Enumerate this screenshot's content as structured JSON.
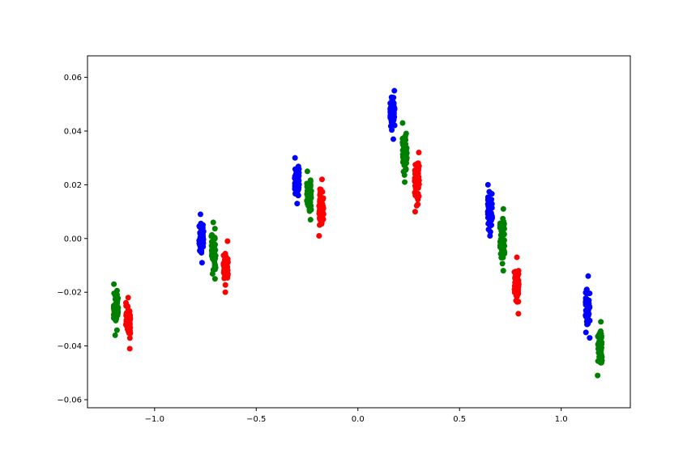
{
  "chart_data": {
    "type": "scatter",
    "title": "",
    "xlabel": "",
    "ylabel": "",
    "xlim": [
      -1.33,
      1.34
    ],
    "ylim": [
      -0.063,
      0.068
    ],
    "grid": false,
    "x_ticks": [
      {
        "value": -1.0,
        "label": "−1.0"
      },
      {
        "value": -0.5,
        "label": "−0.5"
      },
      {
        "value": 0.0,
        "label": "0.0"
      },
      {
        "value": 0.5,
        "label": "0.5"
      },
      {
        "value": 1.0,
        "label": "1.0"
      }
    ],
    "y_ticks": [
      {
        "value": -0.06,
        "label": "−0.06"
      },
      {
        "value": -0.04,
        "label": "−0.04"
      },
      {
        "value": -0.02,
        "label": "−0.02"
      },
      {
        "value": 0.0,
        "label": "0.00"
      },
      {
        "value": 0.02,
        "label": "0.02"
      },
      {
        "value": 0.04,
        "label": "0.04"
      },
      {
        "value": 0.06,
        "label": "0.06"
      }
    ],
    "series": [
      {
        "color": "#0000ff",
        "clusters": [
          {
            "x": -0.77,
            "y_range": [
              -0.009,
              0.009
            ]
          },
          {
            "x": -0.3,
            "y_range": [
              0.013,
              0.03
            ]
          },
          {
            "x": 0.17,
            "y_range": [
              0.037,
              0.055
            ]
          },
          {
            "x": 0.65,
            "y_range": [
              0.001,
              0.02
            ]
          },
          {
            "x": 1.13,
            "y_range": [
              -0.037,
              -0.014
            ]
          }
        ]
      },
      {
        "color": "#008000",
        "clusters": [
          {
            "x": -1.19,
            "y_range": [
              -0.036,
              -0.017
            ]
          },
          {
            "x": -0.71,
            "y_range": [
              -0.015,
              0.006
            ]
          },
          {
            "x": -0.24,
            "y_range": [
              0.007,
              0.025
            ]
          },
          {
            "x": 0.23,
            "y_range": [
              0.021,
              0.043
            ]
          },
          {
            "x": 0.71,
            "y_range": [
              -0.012,
              0.011
            ]
          },
          {
            "x": 1.19,
            "y_range": [
              -0.051,
              -0.031
            ]
          }
        ]
      },
      {
        "color": "#ff0000",
        "clusters": [
          {
            "x": -1.13,
            "y_range": [
              -0.041,
              -0.022
            ]
          },
          {
            "x": -0.65,
            "y_range": [
              -0.02,
              -0.001
            ]
          },
          {
            "x": -0.18,
            "y_range": [
              0.001,
              0.022
            ]
          },
          {
            "x": 0.29,
            "y_range": [
              0.01,
              0.032
            ]
          },
          {
            "x": 0.78,
            "y_range": [
              -0.028,
              -0.007
            ]
          }
        ]
      }
    ]
  }
}
